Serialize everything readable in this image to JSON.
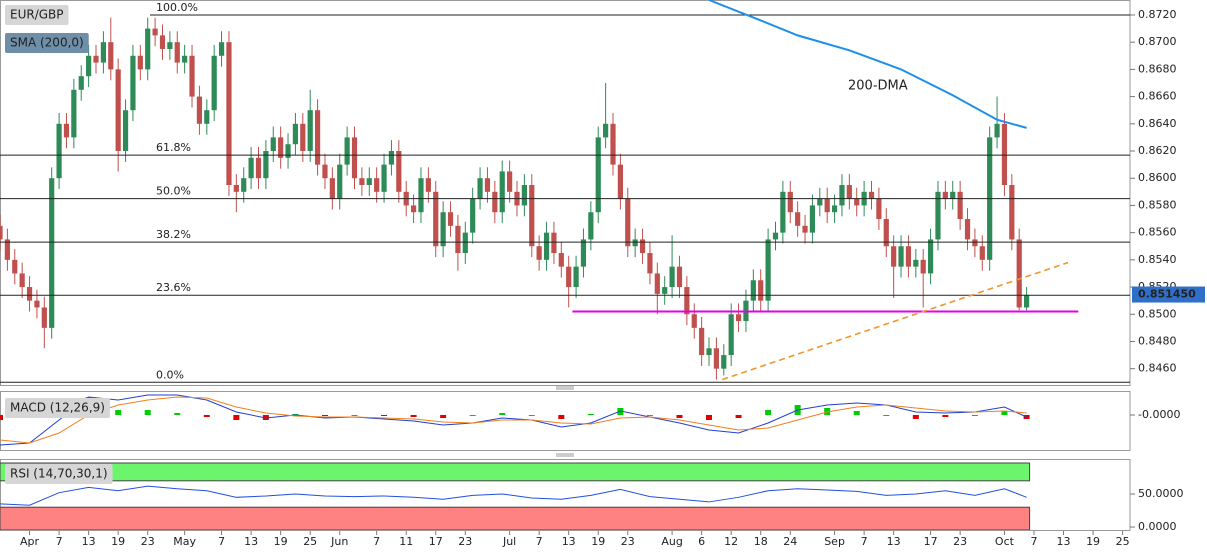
{
  "chart_data": [
    {
      "type": "candlestick",
      "title": "EUR/GBP",
      "up_color": "#2e8b57",
      "down_color": "#c0504d",
      "open": [
        0.8565,
        0.8555,
        0.854,
        0.853,
        0.852,
        0.851,
        0.8505,
        0.849,
        0.86,
        0.864,
        0.863,
        0.8665,
        0.8675,
        0.869,
        0.8685,
        0.87,
        0.868,
        0.862,
        0.865,
        0.869,
        0.868,
        0.871,
        0.8705,
        0.8695,
        0.87,
        0.8685,
        0.869,
        0.866,
        0.864,
        0.865,
        0.869,
        0.87,
        0.8595,
        0.859,
        0.86,
        0.8615,
        0.86,
        0.862,
        0.863,
        0.8615,
        0.8625,
        0.864,
        0.862,
        0.865,
        0.861,
        0.86,
        0.8585,
        0.861,
        0.863,
        0.86,
        0.8595,
        0.86,
        0.859,
        0.861,
        0.862,
        0.859,
        0.858,
        0.8575,
        0.86,
        0.859,
        0.855,
        0.8575,
        0.8565,
        0.8545,
        0.856,
        0.8585,
        0.86,
        0.859,
        0.8575,
        0.8605,
        0.859,
        0.858,
        0.8595,
        0.855,
        0.854,
        0.856,
        0.8545,
        0.8535,
        0.852,
        0.8535,
        0.8555,
        0.8575,
        0.863,
        0.864,
        0.861,
        0.8585,
        0.855,
        0.8555,
        0.8545,
        0.853,
        0.8515,
        0.852,
        0.8535,
        0.852,
        0.85,
        0.849,
        0.847,
        0.8475,
        0.846,
        0.847,
        0.85,
        0.8495,
        0.851,
        0.8525,
        0.851,
        0.8555,
        0.856,
        0.859,
        0.8575,
        0.8565,
        0.856,
        0.858,
        0.8585,
        0.8575,
        0.858,
        0.8595,
        0.8585,
        0.858,
        0.859,
        0.8585,
        0.857,
        0.855,
        0.8535,
        0.855,
        0.8535,
        0.854,
        0.853,
        0.8555,
        0.859,
        0.8585,
        0.859,
        0.857,
        0.8555,
        0.855,
        0.854,
        0.863,
        0.864,
        0.8595,
        0.8555,
        0.8505
      ],
      "high": [
        0.8573,
        0.8563,
        0.8548,
        0.8538,
        0.8528,
        0.8518,
        0.8513,
        0.8608,
        0.8648,
        0.8648,
        0.8673,
        0.8683,
        0.8698,
        0.8698,
        0.8708,
        0.8718,
        0.8688,
        0.8658,
        0.8698,
        0.8698,
        0.8718,
        0.8718,
        0.8713,
        0.8708,
        0.8708,
        0.8698,
        0.8698,
        0.8668,
        0.8658,
        0.8698,
        0.8708,
        0.8708,
        0.8603,
        0.8608,
        0.8623,
        0.8623,
        0.8628,
        0.8638,
        0.8638,
        0.8633,
        0.8648,
        0.8648,
        0.8665,
        0.8658,
        0.8618,
        0.8608,
        0.8618,
        0.8638,
        0.8638,
        0.8608,
        0.8608,
        0.8608,
        0.8618,
        0.8628,
        0.8628,
        0.8598,
        0.8588,
        0.8608,
        0.8608,
        0.8598,
        0.8583,
        0.8583,
        0.8573,
        0.8568,
        0.8593,
        0.8608,
        0.8608,
        0.8598,
        0.8613,
        0.8613,
        0.8598,
        0.8603,
        0.8603,
        0.8558,
        0.8568,
        0.8568,
        0.8553,
        0.8543,
        0.8543,
        0.8563,
        0.8583,
        0.8638,
        0.867,
        0.8648,
        0.8618,
        0.8593,
        0.8563,
        0.8563,
        0.8553,
        0.8538,
        0.8528,
        0.8558,
        0.8543,
        0.8528,
        0.8508,
        0.8498,
        0.8483,
        0.8483,
        0.8478,
        0.8508,
        0.8508,
        0.8518,
        0.8533,
        0.8533,
        0.8563,
        0.8568,
        0.8598,
        0.8598,
        0.8583,
        0.8573,
        0.8588,
        0.8593,
        0.8593,
        0.8588,
        0.8603,
        0.8603,
        0.8593,
        0.8598,
        0.8598,
        0.8593,
        0.8578,
        0.8558,
        0.8558,
        0.8558,
        0.8548,
        0.8548,
        0.8563,
        0.8598,
        0.8598,
        0.8598,
        0.8598,
        0.8578,
        0.8563,
        0.8558,
        0.8638,
        0.866,
        0.8648,
        0.8603,
        0.8563,
        0.852
      ],
      "low": [
        0.8547,
        0.8532,
        0.8522,
        0.8512,
        0.8502,
        0.8497,
        0.8475,
        0.8482,
        0.8592,
        0.8622,
        0.8622,
        0.8657,
        0.8667,
        0.8677,
        0.8677,
        0.8672,
        0.8605,
        0.8612,
        0.8642,
        0.8672,
        0.8672,
        0.8697,
        0.8687,
        0.8687,
        0.8677,
        0.8677,
        0.8652,
        0.8632,
        0.8632,
        0.8642,
        0.8682,
        0.8587,
        0.8575,
        0.8582,
        0.8592,
        0.8592,
        0.8592,
        0.8612,
        0.8607,
        0.8607,
        0.8617,
        0.8612,
        0.8612,
        0.8602,
        0.8592,
        0.8577,
        0.8577,
        0.8602,
        0.8592,
        0.8587,
        0.8587,
        0.8582,
        0.8582,
        0.8602,
        0.8582,
        0.8572,
        0.8567,
        0.8567,
        0.8582,
        0.8542,
        0.8542,
        0.8557,
        0.8532,
        0.8537,
        0.8552,
        0.8577,
        0.8582,
        0.8567,
        0.8567,
        0.8582,
        0.8572,
        0.8572,
        0.8542,
        0.8532,
        0.8532,
        0.8537,
        0.8527,
        0.8505,
        0.8512,
        0.8527,
        0.8547,
        0.8567,
        0.8622,
        0.8602,
        0.8577,
        0.8542,
        0.8542,
        0.8537,
        0.8522,
        0.85,
        0.8507,
        0.8512,
        0.8512,
        0.8492,
        0.8482,
        0.8462,
        0.8462,
        0.8452,
        0.8455,
        0.8462,
        0.8487,
        0.8487,
        0.8502,
        0.8502,
        0.8502,
        0.8547,
        0.8552,
        0.8567,
        0.8557,
        0.8552,
        0.8552,
        0.8572,
        0.8567,
        0.8567,
        0.8572,
        0.8577,
        0.8572,
        0.8572,
        0.8577,
        0.8562,
        0.8542,
        0.8512,
        0.8527,
        0.8527,
        0.8527,
        0.8505,
        0.8522,
        0.8547,
        0.8577,
        0.8577,
        0.8562,
        0.8547,
        0.8542,
        0.8532,
        0.8532,
        0.8622,
        0.8587,
        0.8547,
        0.8503,
        0.8503
      ],
      "close": [
        0.8555,
        0.854,
        0.853,
        0.852,
        0.851,
        0.8505,
        0.849,
        0.86,
        0.864,
        0.863,
        0.8665,
        0.8675,
        0.869,
        0.8685,
        0.87,
        0.868,
        0.862,
        0.865,
        0.869,
        0.868,
        0.871,
        0.8705,
        0.8695,
        0.87,
        0.8685,
        0.869,
        0.866,
        0.864,
        0.865,
        0.869,
        0.87,
        0.8595,
        0.859,
        0.86,
        0.8615,
        0.86,
        0.862,
        0.863,
        0.8615,
        0.8625,
        0.864,
        0.862,
        0.865,
        0.861,
        0.86,
        0.8585,
        0.861,
        0.863,
        0.86,
        0.8595,
        0.86,
        0.859,
        0.861,
        0.862,
        0.859,
        0.858,
        0.8575,
        0.86,
        0.859,
        0.855,
        0.8575,
        0.8565,
        0.8545,
        0.856,
        0.8585,
        0.86,
        0.859,
        0.8575,
        0.8605,
        0.859,
        0.858,
        0.8595,
        0.855,
        0.854,
        0.856,
        0.8545,
        0.8535,
        0.852,
        0.8535,
        0.8555,
        0.8575,
        0.863,
        0.864,
        0.861,
        0.8585,
        0.855,
        0.8555,
        0.8545,
        0.853,
        0.8515,
        0.852,
        0.8535,
        0.852,
        0.85,
        0.849,
        0.847,
        0.8475,
        0.846,
        0.847,
        0.85,
        0.8495,
        0.851,
        0.8525,
        0.851,
        0.8555,
        0.856,
        0.859,
        0.8575,
        0.8565,
        0.856,
        0.858,
        0.8585,
        0.8575,
        0.858,
        0.8595,
        0.8585,
        0.858,
        0.859,
        0.8585,
        0.857,
        0.855,
        0.8535,
        0.855,
        0.8535,
        0.854,
        0.853,
        0.8555,
        0.859,
        0.8585,
        0.859,
        0.857,
        0.8555,
        0.855,
        0.854,
        0.863,
        0.864,
        0.8595,
        0.8555,
        0.8505,
        0.8514
      ],
      "ylim": [
        0.8448,
        0.8731
      ],
      "yticks": [
        {
          "value": 0.846,
          "label": "0.8460"
        },
        {
          "value": 0.848,
          "label": "0.8480"
        },
        {
          "value": 0.85,
          "label": "0.8500"
        },
        {
          "value": 0.852,
          "label": "0.8520"
        },
        {
          "value": 0.854,
          "label": "0.8540"
        },
        {
          "value": 0.856,
          "label": "0.8560"
        },
        {
          "value": 0.858,
          "label": "0.8580"
        },
        {
          "value": 0.86,
          "label": "0.8600"
        },
        {
          "value": 0.862,
          "label": "0.8620"
        },
        {
          "value": 0.864,
          "label": "0.8640"
        },
        {
          "value": 0.866,
          "label": "0.8660"
        },
        {
          "value": 0.868,
          "label": "0.8680"
        },
        {
          "value": 0.87,
          "label": "0.8700"
        },
        {
          "value": 0.872,
          "label": "0.8720"
        }
      ],
      "grid": false,
      "sma": {
        "name": "SMA (200,0)",
        "label": "200-DMA",
        "color": "#1e8fe8",
        "x": [
          96,
          103,
          108,
          115,
          122,
          129,
          135,
          139
        ],
        "values": [
          0.8731,
          0.8716,
          0.8705,
          0.8694,
          0.868,
          0.8661,
          0.8643,
          0.8637
        ]
      },
      "fibonacci": [
        {
          "value": 0.872,
          "label": "100.0%"
        },
        {
          "value": 0.8617,
          "label": "61.8%"
        },
        {
          "value": 0.8585,
          "label": "50.0%"
        },
        {
          "value": 0.8553,
          "label": "38.2%"
        },
        {
          "value": 0.8514,
          "label": "23.6%"
        },
        {
          "value": 0.845,
          "label": "0.0%"
        }
      ],
      "lines": [
        {
          "color": "#e600e6",
          "dashed": false,
          "x": [
            77.5,
            146
          ],
          "values": [
            0.8502,
            0.8502
          ]
        },
        {
          "color": "#f0962a",
          "dashed": true,
          "x": [
            97.8,
            144.6
          ],
          "values": [
            0.8452,
            0.8538
          ]
        }
      ],
      "last_price": {
        "value": 0.85145,
        "label": "0.851450",
        "color": "#2f6fc8"
      }
    },
    {
      "type": "macd",
      "title": "MACD (12,26,9)",
      "x": [
        0,
        4,
        8,
        12,
        16,
        20,
        24,
        28,
        32,
        36,
        40,
        44,
        48,
        52,
        56,
        60,
        64,
        68,
        72,
        76,
        80,
        84,
        88,
        92,
        96,
        100,
        104,
        108,
        112,
        116,
        120,
        124,
        128,
        132,
        136,
        139
      ],
      "macd": [
        -0.003,
        -0.0028,
        -0.0005,
        0.0018,
        0.0015,
        0.002,
        0.002,
        0.0015,
        0.0003,
        -0.0003,
        0.0,
        -0.0003,
        -0.0002,
        -0.0004,
        -0.0006,
        -0.001,
        -0.0008,
        -0.0003,
        -0.0005,
        -0.0012,
        -0.0008,
        0.0004,
        -0.0002,
        -0.0008,
        -0.0015,
        -0.0018,
        -0.0008,
        0.0005,
        0.001,
        0.0012,
        0.001,
        0.0003,
        0.0002,
        0.0003,
        0.0008,
        -0.0002
      ],
      "signal": [
        -0.0025,
        -0.0028,
        -0.0018,
        0.0,
        0.001,
        0.0015,
        0.0018,
        0.0017,
        0.0008,
        0.0002,
        -0.0001,
        -0.0002,
        -0.0002,
        -0.0003,
        -0.0004,
        -0.0007,
        -0.0008,
        -0.0005,
        -0.0005,
        -0.0008,
        -0.0009,
        -0.0003,
        -0.0002,
        -0.0005,
        -0.001,
        -0.0015,
        -0.0013,
        -0.0005,
        0.0003,
        0.0008,
        0.001,
        0.0007,
        0.0004,
        0.0003,
        0.0004,
        0.0002
      ],
      "histogram": [
        -0.0005,
        0.0,
        0.0013,
        0.0018,
        0.0005,
        0.0005,
        0.0002,
        -0.0002,
        -0.0005,
        -0.0005,
        0.0001,
        -0.0001,
        0.0,
        -0.0001,
        -0.0002,
        -0.0003,
        0.0,
        0.0002,
        0.0,
        -0.0004,
        0.0001,
        0.0007,
        0.0,
        -0.0003,
        -0.0005,
        -0.0003,
        0.0005,
        0.001,
        0.0007,
        0.0004,
        0.0,
        -0.0004,
        -0.0002,
        0.0,
        0.0004,
        -0.0004
      ],
      "macd_color": "#2040d0",
      "signal_color": "#f08020",
      "up_color": "#00cc00",
      "down_color": "#e00000",
      "ylim": [
        -0.0035,
        0.0023
      ],
      "yticks": [
        {
          "value": 0,
          "label": "-0.0000"
        }
      ]
    },
    {
      "type": "rsi",
      "title": "RSI (14,70,30,1)",
      "x": [
        0,
        4,
        8,
        12,
        16,
        20,
        24,
        28,
        32,
        36,
        40,
        44,
        48,
        52,
        56,
        60,
        64,
        68,
        72,
        76,
        80,
        84,
        88,
        92,
        96,
        100,
        104,
        108,
        112,
        116,
        120,
        124,
        128,
        132,
        136,
        139
      ],
      "values": [
        35,
        33,
        52,
        60,
        55,
        62,
        58,
        55,
        45,
        47,
        50,
        47,
        46,
        47,
        45,
        42,
        48,
        50,
        44,
        42,
        48,
        57,
        46,
        42,
        38,
        45,
        55,
        58,
        56,
        54,
        48,
        50,
        55,
        48,
        58,
        45
      ],
      "color": "#2050e0",
      "overbought": 70,
      "oversold": 30,
      "ylim": [
        -4.5,
        101.5
      ],
      "yticks": [
        {
          "value": 50,
          "label": "50.0000"
        },
        {
          "value": 0,
          "label": "0.0000"
        }
      ],
      "xlim": [
        0,
        153
      ],
      "xticks": [
        {
          "value": 4,
          "label": "Apr"
        },
        {
          "value": 8,
          "label": "7"
        },
        {
          "value": 12,
          "label": "13"
        },
        {
          "value": 16,
          "label": "19"
        },
        {
          "value": 20,
          "label": "23"
        },
        {
          "value": 25,
          "label": "May"
        },
        {
          "value": 30,
          "label": "7"
        },
        {
          "value": 34,
          "label": "13"
        },
        {
          "value": 38,
          "label": "19"
        },
        {
          "value": 42,
          "label": "25"
        },
        {
          "value": 46,
          "label": "Jun"
        },
        {
          "value": 51,
          "label": "7"
        },
        {
          "value": 55,
          "label": "11"
        },
        {
          "value": 59,
          "label": "17"
        },
        {
          "value": 63,
          "label": "23"
        },
        {
          "value": 69,
          "label": "Jul"
        },
        {
          "value": 73,
          "label": "7"
        },
        {
          "value": 77,
          "label": "13"
        },
        {
          "value": 81,
          "label": "19"
        },
        {
          "value": 85,
          "label": "23"
        },
        {
          "value": 91,
          "label": "Aug"
        },
        {
          "value": 95,
          "label": "6"
        },
        {
          "value": 99,
          "label": "12"
        },
        {
          "value": 103,
          "label": "18"
        },
        {
          "value": 107,
          "label": "24"
        },
        {
          "value": 113,
          "label": "Sep"
        },
        {
          "value": 117,
          "label": "7"
        },
        {
          "value": 121,
          "label": "13"
        },
        {
          "value": 126,
          "label": "17"
        },
        {
          "value": 130,
          "label": "23"
        },
        {
          "value": 136,
          "label": "Oct"
        },
        {
          "value": 140,
          "label": "7"
        },
        {
          "value": 144,
          "label": "13"
        },
        {
          "value": 148,
          "label": "19"
        },
        {
          "value": 152,
          "label": "25"
        }
      ]
    }
  ]
}
